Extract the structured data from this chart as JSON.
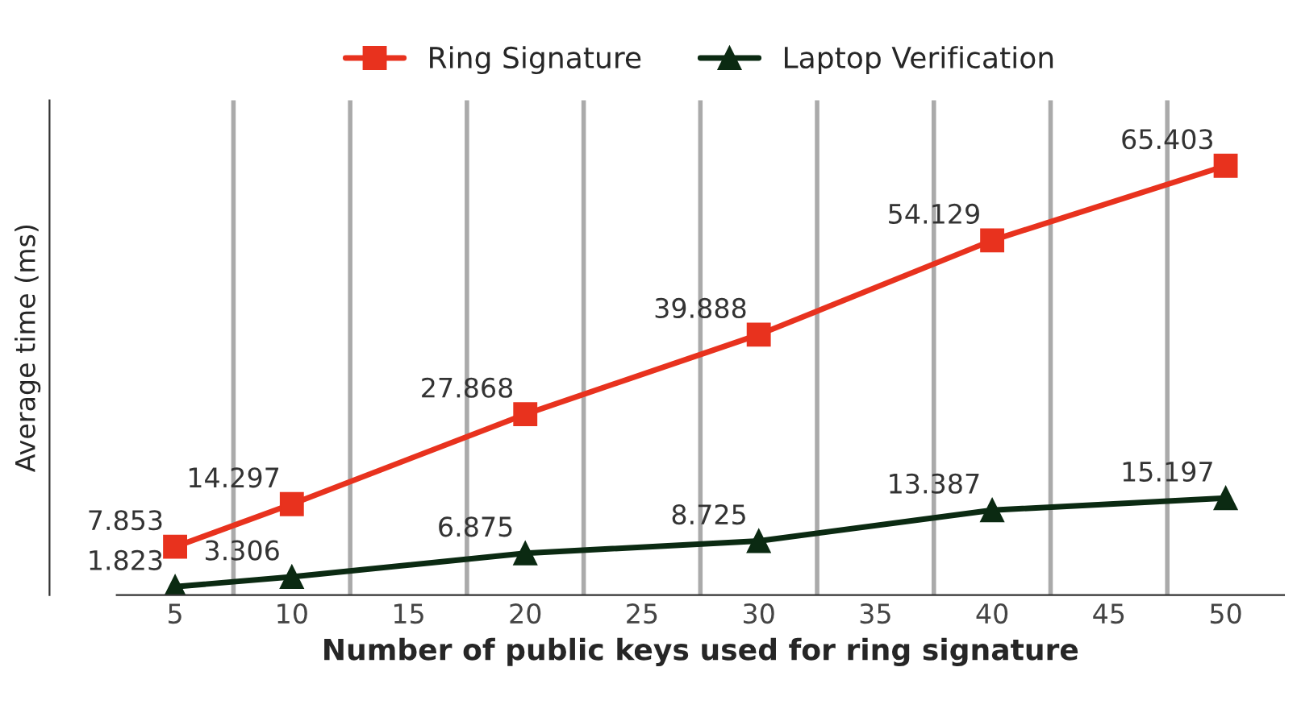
{
  "chart_data": {
    "type": "line",
    "xlabel": "Number of public keys used for ring signature",
    "ylabel": "Average time (ms)",
    "x": [
      5,
      10,
      20,
      30,
      40,
      50
    ],
    "series": [
      {
        "name": "Ring Signature",
        "color": "#e8321e",
        "marker": "square",
        "values": [
          7.853,
          14.297,
          27.868,
          39.888,
          54.129,
          65.403
        ]
      },
      {
        "name": "Laptop Verification",
        "color": "#0b2a12",
        "marker": "triangle",
        "values": [
          1.823,
          3.306,
          6.875,
          8.725,
          13.387,
          15.197
        ]
      }
    ],
    "xlim": [
      2.5,
      52.5
    ],
    "xticks": [
      5,
      {
        "value": 7.5,
        "label": null
      },
      10,
      {
        "value": 12.5,
        "label": null
      },
      15,
      {
        "value": 17.5,
        "label": null
      },
      20,
      {
        "value": 22.5,
        "label": null
      },
      25,
      {
        "value": 27.5,
        "label": null
      },
      30,
      {
        "value": 32.5,
        "label": null
      },
      35,
      {
        "value": 37.5,
        "label": null
      },
      40,
      {
        "value": 42.5,
        "label": null
      },
      45,
      {
        "value": 47.5,
        "label": null
      },
      50
    ],
    "tick_labels": "x",
    "grid": "x",
    "legend": "top",
    "data_labels": true,
    "line_style": "solid"
  }
}
